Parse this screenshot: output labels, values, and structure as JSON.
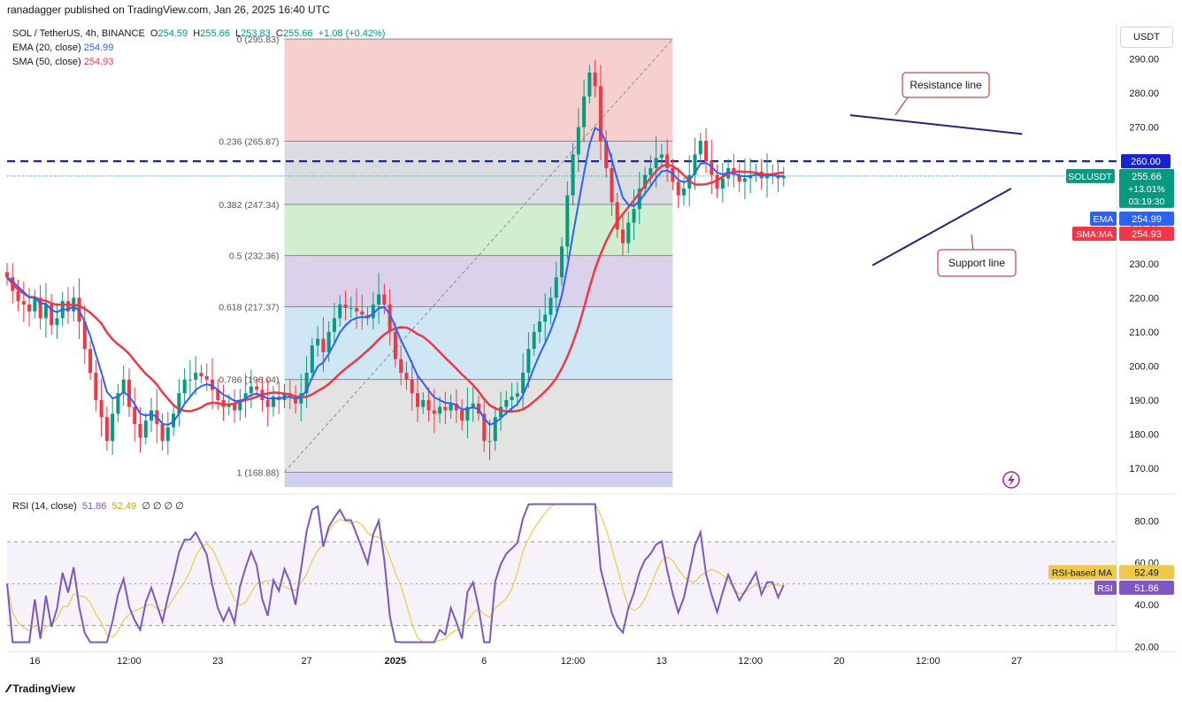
{
  "header": {
    "text": "ranadagger published on TradingView.com, Jan 26, 2025 16:40 UTC"
  },
  "symbol": {
    "title": "SOL / TetherUS, 4h, BINANCE",
    "o_label": "O",
    "o": "254.59",
    "h_label": "H",
    "h": "255.66",
    "l_label": "L",
    "l": "253.83",
    "c_label": "C",
    "c": "255.66",
    "change": "+1.08 (+0.42%)"
  },
  "indicators": {
    "ema_label": "EMA (20, close)",
    "ema_value": "254.99",
    "sma_label": "SMA (50, close)",
    "sma_value": "254.93"
  },
  "currency_button": "USDT",
  "colors": {
    "up": "#089981",
    "down": "#f23645",
    "ema": "#2962ff",
    "sma": "#f23645",
    "rsi": "#7e57c2",
    "rsi_ma": "#f0c94a",
    "trendline": "#1e2a78",
    "dashed_line": "#1a22c9"
  },
  "chart_data": [
    {
      "type": "candlestick",
      "title": "SOL / TetherUS, 4h, BINANCE",
      "ylim": [
        163,
        300
      ],
      "y_ticks": [
        "170.00",
        "180.00",
        "190.00",
        "200.00",
        "210.00",
        "220.00",
        "230.00",
        "240.00",
        "250.00",
        "260.00",
        "270.00",
        "280.00",
        "290.00"
      ],
      "y_tick_values": [
        170,
        180,
        190,
        200,
        210,
        220,
        230,
        240,
        250,
        260,
        270,
        280,
        290
      ],
      "x_ticks": [
        "16",
        "12:00",
        "23",
        "27",
        "2025",
        "6",
        "12:00",
        "13",
        "12:00",
        "20",
        "12:00",
        "27"
      ],
      "x_tick_index": [
        5,
        22,
        38,
        54,
        70,
        86,
        102,
        118,
        134,
        150,
        166,
        182
      ],
      "x_range": [
        0,
        200
      ],
      "horizontal_line": {
        "value": 260.0,
        "label": "260.00",
        "style": "dashed"
      },
      "last_price": {
        "symbol": "SOLUSDT",
        "value": "255.66",
        "change": "+13.01%",
        "countdown": "03:19:30"
      },
      "ema_tag": {
        "label": "EMA",
        "value": "254.99"
      },
      "sma_tag": {
        "label": "SMA:MA",
        "value": "254.93"
      },
      "fibonacci": {
        "x_start": 50,
        "x_end": 120,
        "levels": [
          {
            "ratio": "0",
            "value": 295.83,
            "label": "0 (295.83)"
          },
          {
            "ratio": "0.236",
            "value": 265.87,
            "label": "0.236 (265.87)"
          },
          {
            "ratio": "0.382",
            "value": 247.34,
            "label": "0.382 (247.34)"
          },
          {
            "ratio": "0.5",
            "value": 232.36,
            "label": "0.5 (232.36)"
          },
          {
            "ratio": "0.618",
            "value": 217.37,
            "label": "0.618 (217.37)"
          },
          {
            "ratio": "0.786",
            "value": 196.04,
            "label": "0.786 (196.04)"
          },
          {
            "ratio": "1",
            "value": 168.88,
            "label": "1 (168.88)"
          }
        ],
        "bottom_value": 164.5,
        "zone_colors": [
          "#f4c7c7",
          "#d4d6dc",
          "#c8ecc8",
          "#d6c9e6",
          "#c7e2f2",
          "#dedede",
          "#c8c8f0"
        ]
      },
      "trendlines": [
        {
          "name": "Resistance line",
          "x1": 152,
          "y1": 273.5,
          "x2": 183,
          "y2": 268.0
        },
        {
          "name": "Support line",
          "x1": 156,
          "y1": 229.5,
          "x2": 181,
          "y2": 252.0
        }
      ],
      "callouts": [
        {
          "text": "Resistance line",
          "anchor_index": 158,
          "anchor_value": 273
        },
        {
          "text": "Support line",
          "anchor_index": 171,
          "anchor_value": 244
        }
      ],
      "close_series": [
        226,
        222,
        219,
        218,
        216,
        220,
        214,
        218,
        212,
        214,
        219,
        216,
        220,
        213,
        205,
        198,
        190,
        185,
        178,
        186,
        192,
        196,
        188,
        183,
        179,
        184,
        187,
        183,
        178,
        182,
        186,
        192,
        196,
        196,
        198,
        197,
        196,
        193,
        190,
        188,
        189,
        187,
        190,
        192,
        194,
        193,
        190,
        188,
        191,
        190,
        192,
        191,
        189,
        192,
        198,
        206,
        208,
        204,
        210,
        214,
        218,
        217,
        217,
        216,
        215,
        214,
        218,
        221,
        218,
        210,
        202,
        198,
        196,
        192,
        188,
        190,
        187,
        186,
        188,
        187,
        189,
        187,
        184,
        188,
        189,
        186,
        178,
        178,
        185,
        188,
        190,
        191,
        192,
        198,
        205,
        210,
        213,
        215,
        220,
        226,
        235,
        250,
        262,
        270,
        279,
        286,
        282,
        266,
        258,
        248,
        240,
        236,
        242,
        246,
        252,
        256,
        258,
        261,
        262,
        258,
        254,
        250,
        252,
        256,
        262,
        266,
        260,
        256,
        252,
        255,
        258,
        256,
        254,
        255,
        256,
        257,
        255,
        256,
        256,
        255,
        255.66
      ],
      "ema_series_label": "EMA (20, close)",
      "sma_series_label": "SMA (50, close)"
    },
    {
      "type": "line",
      "title": "RSI (14, close)",
      "ylim": [
        18,
        92
      ],
      "y_ticks": [
        "20.00",
        "40.00",
        "60.00",
        "80.00"
      ],
      "y_tick_values": [
        20,
        40,
        60,
        80
      ],
      "bands": [
        30,
        70
      ],
      "info": {
        "label": "RSI (14, close)",
        "rsi": "51.86",
        "ma": "52.49",
        "zeros": "∅ ∅ ∅ ∅"
      },
      "rsi_tag": {
        "label": "RSI",
        "value": "51.86"
      },
      "rsi_ma_tag": {
        "label": "RSI-based MA",
        "value": "52.49"
      }
    }
  ]
}
